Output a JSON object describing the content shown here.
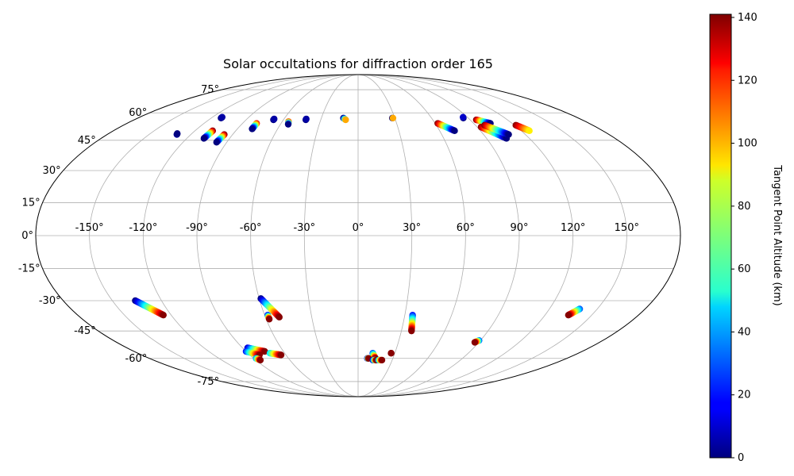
{
  "chart_data": {
    "type": "scatter",
    "projection": "mollweide",
    "title": "Solar occultations for diffraction order 165",
    "longitude_ticks": [
      {
        "value": -150,
        "label": "-150°"
      },
      {
        "value": -120,
        "label": "-120°"
      },
      {
        "value": -90,
        "label": "-90°"
      },
      {
        "value": -60,
        "label": "-60°"
      },
      {
        "value": -30,
        "label": "-30°"
      },
      {
        "value": 0,
        "label": "0°"
      },
      {
        "value": 30,
        "label": "30°"
      },
      {
        "value": 60,
        "label": "60°"
      },
      {
        "value": 90,
        "label": "90°"
      },
      {
        "value": 120,
        "label": "120°"
      },
      {
        "value": 150,
        "label": "150°"
      }
    ],
    "latitude_ticks": [
      {
        "value": 75,
        "label": "75°"
      },
      {
        "value": 60,
        "label": "60°"
      },
      {
        "value": 45,
        "label": "45°"
      },
      {
        "value": 30,
        "label": "30°"
      },
      {
        "value": 15,
        "label": "15°"
      },
      {
        "value": 0,
        "label": "0°"
      },
      {
        "value": -15,
        "label": "-15°"
      },
      {
        "value": -30,
        "label": "-30°"
      },
      {
        "value": -45,
        "label": "-45°"
      },
      {
        "value": -60,
        "label": "-60°"
      },
      {
        "value": -75,
        "label": "-75°"
      }
    ],
    "grid": true,
    "colorbar": {
      "label": "Tangent Point Altitude (km)",
      "range": [
        0,
        141
      ],
      "colormap": "jet",
      "ticks": [
        {
          "value": 0,
          "label": "0"
        },
        {
          "value": 20,
          "label": "20"
        },
        {
          "value": 40,
          "label": "40"
        },
        {
          "value": 60,
          "label": "60"
        },
        {
          "value": 80,
          "label": "80"
        },
        {
          "value": 100,
          "label": "100"
        },
        {
          "value": 120,
          "label": "120"
        },
        {
          "value": 140,
          "label": "140"
        }
      ]
    },
    "tracks": [
      {
        "start": {
          "lon": -130,
          "lat": 48,
          "alt": 5
        },
        "end": {
          "lon": -130.5,
          "lat": 48.5,
          "alt": 0
        }
      },
      {
        "start": {
          "lon": -112,
          "lat": 57,
          "alt": 0
        },
        "end": {
          "lon": -112,
          "lat": 57.5,
          "alt": 5
        }
      },
      {
        "start": {
          "lon": -107,
          "lat": 50,
          "alt": 140
        },
        "end": {
          "lon": -108,
          "lat": 46,
          "alt": 0
        }
      },
      {
        "start": {
          "lon": -96,
          "lat": 48,
          "alt": 140
        },
        "end": {
          "lon": -97,
          "lat": 44,
          "alt": 0
        }
      },
      {
        "start": {
          "lon": -79,
          "lat": 54,
          "alt": 120
        },
        "end": {
          "lon": -79,
          "lat": 51,
          "alt": 0
        }
      },
      {
        "start": {
          "lon": -68,
          "lat": 56,
          "alt": 0
        },
        "end": {
          "lon": -68,
          "lat": 56.5,
          "alt": 5
        }
      },
      {
        "start": {
          "lon": -55,
          "lat": 55,
          "alt": 110
        },
        "end": {
          "lon": -54,
          "lat": 53.5,
          "alt": 0
        }
      },
      {
        "start": {
          "lon": -42,
          "lat": 56,
          "alt": 0
        },
        "end": {
          "lon": -42,
          "lat": 56.5,
          "alt": 5
        }
      },
      {
        "start": {
          "lon": -12,
          "lat": 57,
          "alt": 0
        },
        "end": {
          "lon": -10,
          "lat": 56,
          "alt": 100
        }
      },
      {
        "start": {
          "lon": 28,
          "lat": 57,
          "alt": 0
        },
        "end": {
          "lon": 28.5,
          "lat": 57,
          "alt": 100
        }
      },
      {
        "start": {
          "lon": 62,
          "lat": 54,
          "alt": 140
        },
        "end": {
          "lon": 71,
          "lat": 50,
          "alt": 0
        }
      },
      {
        "start": {
          "lon": 86,
          "lat": 57,
          "alt": 0
        },
        "end": {
          "lon": 86.5,
          "lat": 57.5,
          "alt": 10
        }
      },
      {
        "start": {
          "lon": 95,
          "lat": 56,
          "alt": 140
        },
        "end": {
          "lon": 103,
          "lat": 54,
          "alt": 0
        }
      },
      {
        "start": {
          "lon": 93,
          "lat": 52,
          "alt": 140
        },
        "end": {
          "lon": 104,
          "lat": 46,
          "alt": 0
        }
      },
      {
        "start": {
          "lon": 97,
          "lat": 53,
          "alt": 140
        },
        "end": {
          "lon": 108,
          "lat": 48,
          "alt": 0
        }
      },
      {
        "start": {
          "lon": 121,
          "lat": 53,
          "alt": 140
        },
        "end": {
          "lon": 126,
          "lat": 50,
          "alt": 90
        }
      },
      {
        "start": {
          "lon": -136,
          "lat": -30,
          "alt": 0
        },
        "end": {
          "lon": -125,
          "lat": -37,
          "alt": 140
        }
      },
      {
        "start": {
          "lon": -59,
          "lat": -29,
          "alt": 0
        },
        "end": {
          "lon": -51,
          "lat": -38,
          "alt": 140
        }
      },
      {
        "start": {
          "lon": -58,
          "lat": -37,
          "alt": 20
        },
        "end": {
          "lon": -58,
          "lat": -39,
          "alt": 140
        }
      },
      {
        "start": {
          "lon": 35,
          "lat": -37,
          "alt": 20
        },
        "end": {
          "lon": 37,
          "lat": -45,
          "alt": 140
        }
      },
      {
        "start": {
          "lon": 139,
          "lat": -34,
          "alt": 30
        },
        "end": {
          "lon": 135,
          "lat": -37,
          "alt": 140
        }
      },
      {
        "start": {
          "lon": 89,
          "lat": -50,
          "alt": 30
        },
        "end": {
          "lon": 87,
          "lat": -51,
          "alt": 140
        }
      },
      {
        "start": {
          "lon": -86,
          "lat": -54,
          "alt": 10
        },
        "end": {
          "lon": -75,
          "lat": -56,
          "alt": 140
        }
      },
      {
        "start": {
          "lon": -90,
          "lat": -56,
          "alt": 20
        },
        "end": {
          "lon": -82,
          "lat": -58,
          "alt": 140
        }
      },
      {
        "start": {
          "lon": -72,
          "lat": -57,
          "alt": 50
        },
        "end": {
          "lon": -64,
          "lat": -58,
          "alt": 140
        }
      },
      {
        "start": {
          "lon": -88,
          "lat": -60,
          "alt": 40
        },
        "end": {
          "lon": -86,
          "lat": -61,
          "alt": 140
        }
      },
      {
        "start": {
          "lon": 12,
          "lat": -57,
          "alt": 30
        },
        "end": {
          "lon": 15,
          "lat": -60,
          "alt": 140
        }
      },
      {
        "start": {
          "lon": 8,
          "lat": -60,
          "alt": 20
        },
        "end": {
          "lon": 9,
          "lat": -60,
          "alt": 140
        }
      },
      {
        "start": {
          "lon": 13,
          "lat": -61,
          "alt": 10
        },
        "end": {
          "lon": 16,
          "lat": -61,
          "alt": 140
        }
      },
      {
        "start": {
          "lon": 18,
          "lat": -61,
          "alt": 40
        },
        "end": {
          "lon": 21,
          "lat": -61,
          "alt": 140
        }
      },
      {
        "start": {
          "lon": 27,
          "lat": -57,
          "alt": 140
        },
        "end": {
          "lon": 27,
          "lat": -57,
          "alt": 140
        }
      }
    ]
  }
}
